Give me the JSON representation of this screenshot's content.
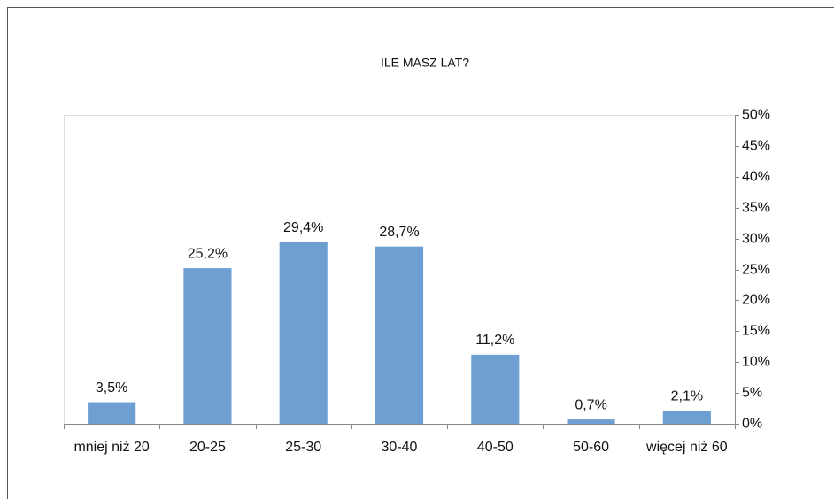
{
  "chart_data": {
    "type": "bar",
    "title": "ILE MASZ LAT?",
    "categories": [
      "mniej niż 20",
      "20-25",
      "25-30",
      "30-40",
      "40-50",
      "50-60",
      "więcej niż 60"
    ],
    "values": [
      3.5,
      25.2,
      29.4,
      28.7,
      11.2,
      0.7,
      2.1
    ],
    "value_labels": [
      "3,5%",
      "25,2%",
      "29,4%",
      "28,7%",
      "11,2%",
      "0,7%",
      "2,1%"
    ],
    "color": "#6e9fd3",
    "ylim": [
      0,
      50
    ],
    "yticks": [
      {
        "value": 0,
        "label": "0%"
      },
      {
        "value": 5,
        "label": "5%"
      },
      {
        "value": 10,
        "label": "10%"
      },
      {
        "value": 15,
        "label": "15%"
      },
      {
        "value": 20,
        "label": "20%"
      },
      {
        "value": 25,
        "label": "25%"
      },
      {
        "value": 30,
        "label": "30%"
      },
      {
        "value": 35,
        "label": "35%"
      },
      {
        "value": 40,
        "label": "40%"
      },
      {
        "value": 45,
        "label": "45%"
      },
      {
        "value": 50,
        "label": "50%"
      }
    ],
    "y_axis_side": "right",
    "grid": false
  }
}
